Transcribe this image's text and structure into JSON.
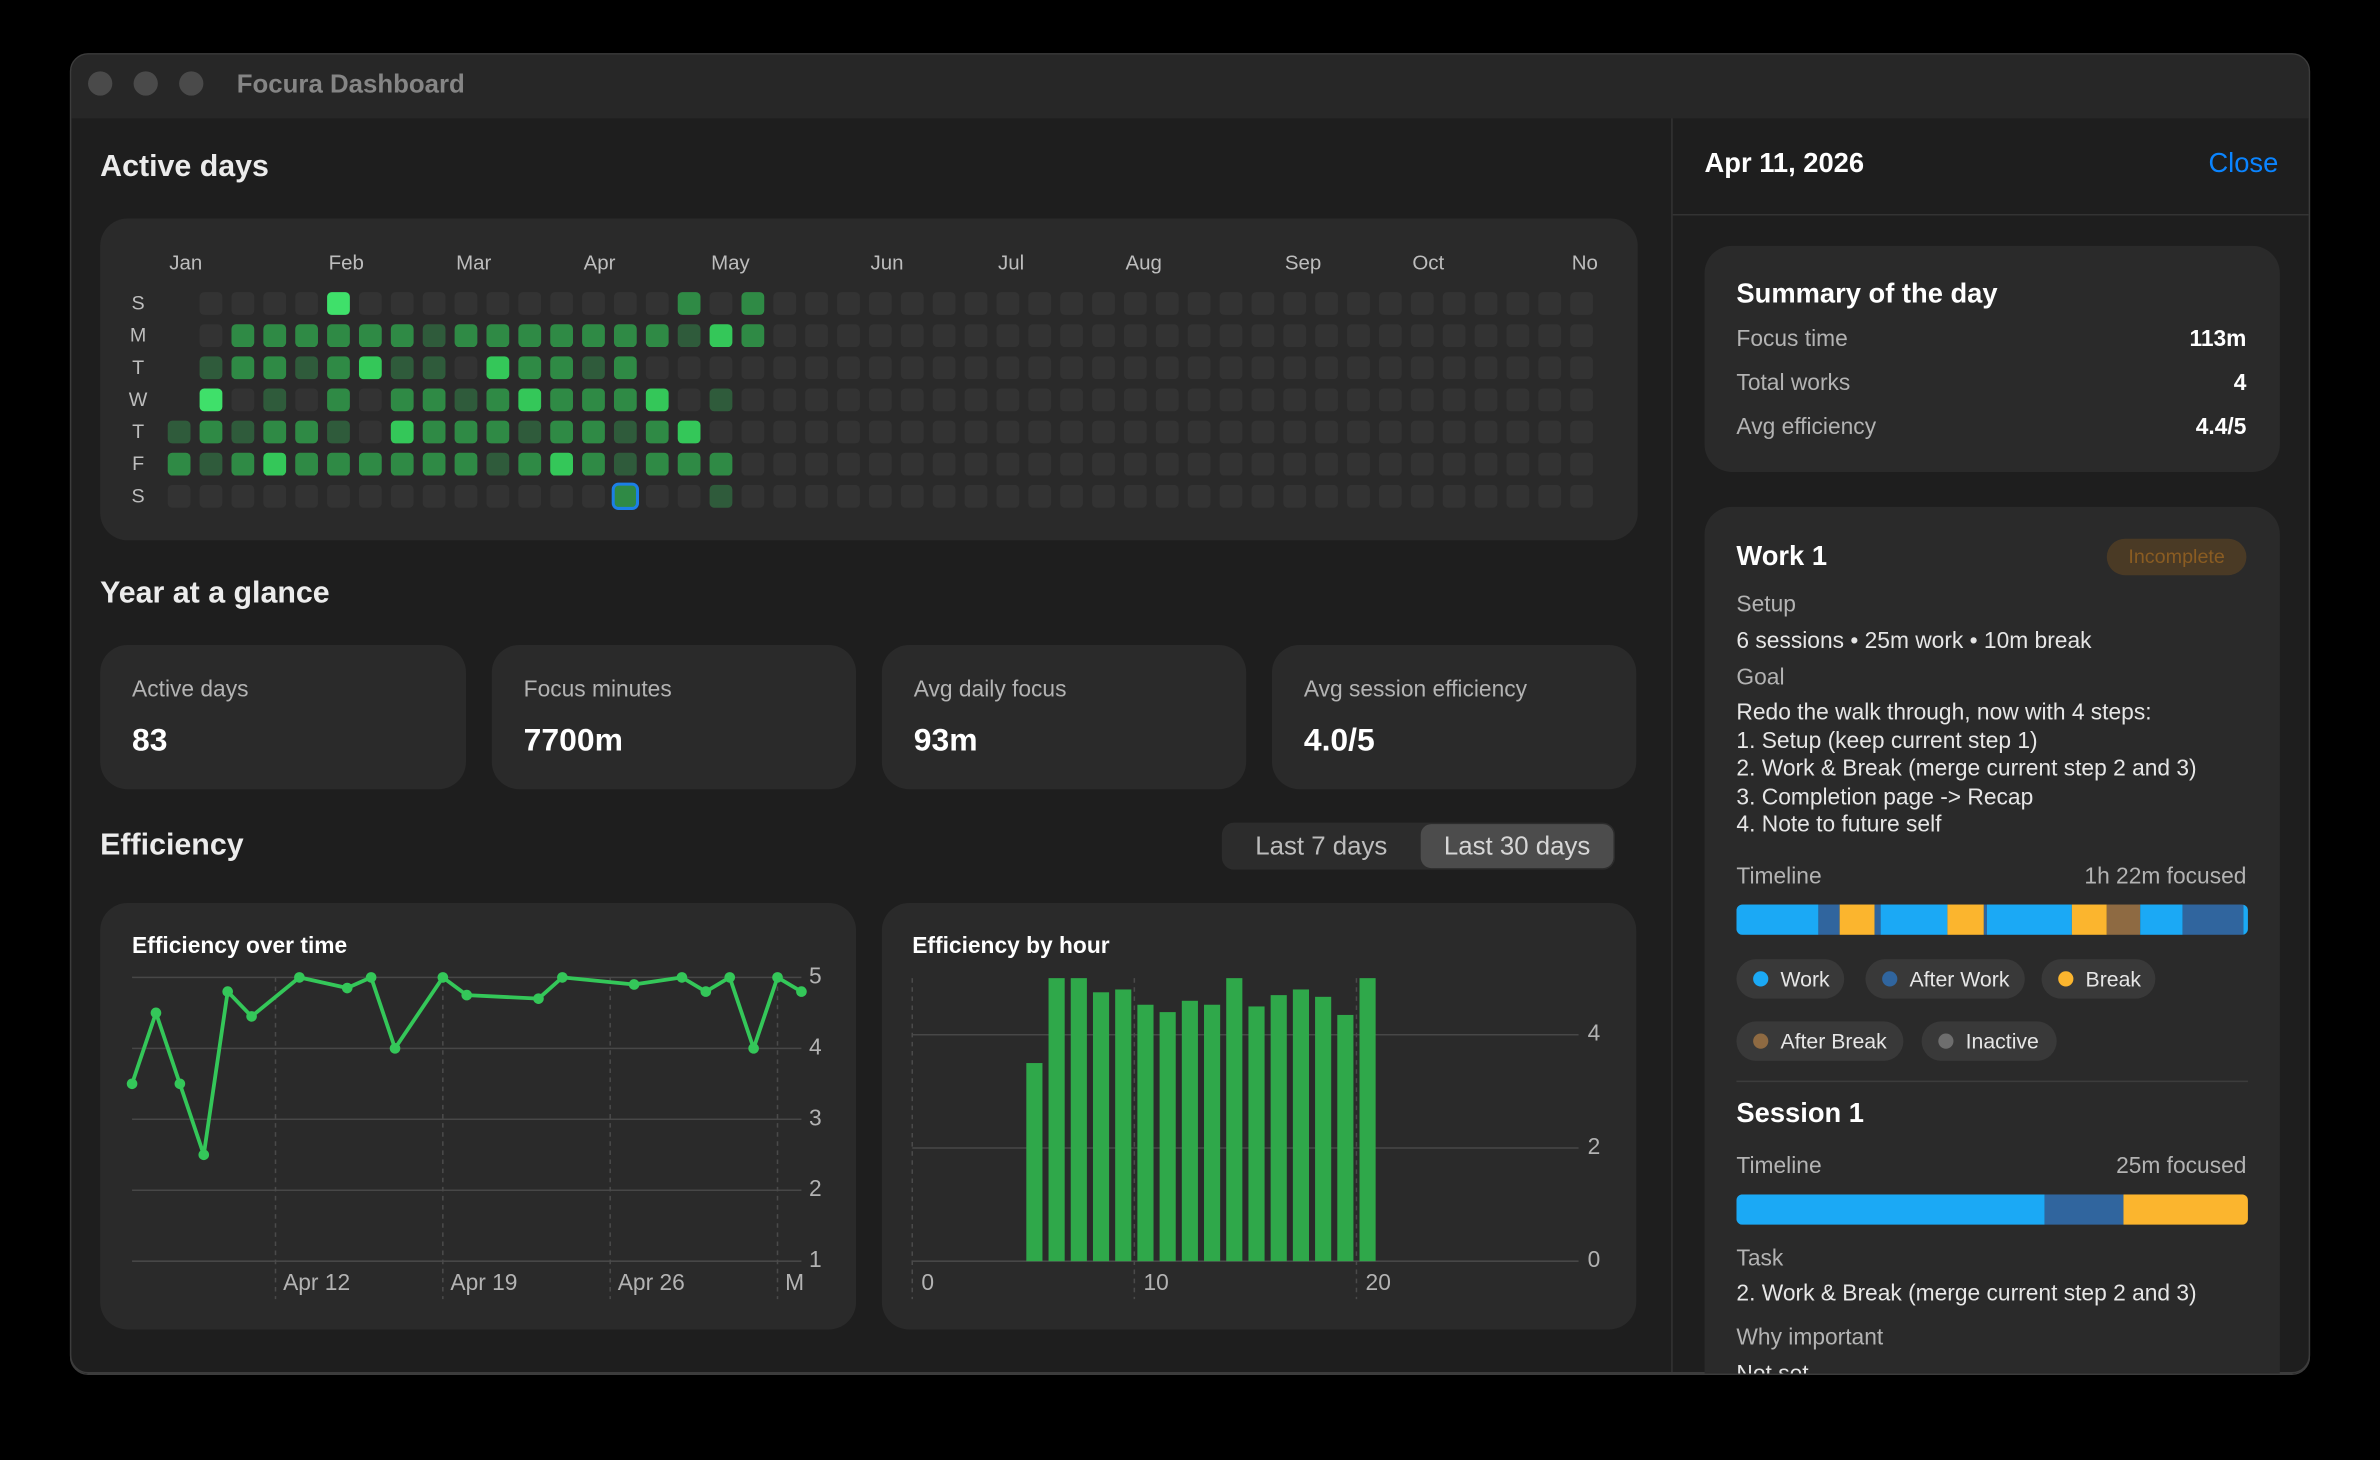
{
  "window": {
    "title": "Focura Dashboard"
  },
  "year_at_a_glance": {
    "title": "Year at a glance",
    "cards": [
      {
        "label": "Active days",
        "value": "83"
      },
      {
        "label": "Focus minutes",
        "value": "7700m"
      },
      {
        "label": "Avg daily focus",
        "value": "93m"
      },
      {
        "label": "Avg session efficiency",
        "value": "4.0/5"
      }
    ]
  },
  "efficiency": {
    "title": "Efficiency",
    "range_options": [
      "Last 7 days",
      "Last 30 days"
    ]
  },
  "chart_data": [
    {
      "type": "heatmap",
      "title": "Active days",
      "months": [
        "Jan",
        "Feb",
        "Mar",
        "Apr",
        "May",
        "Jun",
        "Jul",
        "Aug",
        "Sep",
        "Oct",
        "No"
      ],
      "days": [
        "S",
        "M",
        "T",
        "W",
        "T",
        "F",
        "S"
      ],
      "colors": [
        "#333333",
        "#2f5b3b",
        "#2f8a45",
        "#34c759",
        "#3fe06a"
      ],
      "values": [
        [
          null,
          0,
          0,
          0,
          0,
          4,
          0,
          0,
          0,
          0,
          0,
          0,
          0,
          0,
          0,
          0,
          2,
          0,
          2,
          0,
          0,
          0,
          0,
          0,
          0,
          0,
          0,
          0,
          0,
          0,
          0,
          0,
          0,
          0,
          0,
          0,
          0,
          0,
          0,
          0,
          0,
          0,
          0,
          0,
          0
        ],
        [
          null,
          0,
          2,
          2,
          2,
          2,
          2,
          2,
          1,
          2,
          2,
          2,
          2,
          2,
          2,
          2,
          1,
          3,
          2,
          0,
          0,
          0,
          0,
          0,
          0,
          0,
          0,
          0,
          0,
          0,
          0,
          0,
          0,
          0,
          0,
          0,
          0,
          0,
          0,
          0,
          0,
          0,
          0,
          0,
          0
        ],
        [
          null,
          1,
          2,
          2,
          1,
          2,
          3,
          1,
          1,
          0,
          3,
          2,
          2,
          1,
          2,
          0,
          0,
          0,
          0,
          0,
          0,
          0,
          0,
          0,
          0,
          0,
          0,
          0,
          0,
          0,
          0,
          0,
          0,
          0,
          0,
          0,
          0,
          0,
          0,
          0,
          0,
          0,
          0,
          0,
          0
        ],
        [
          null,
          4,
          0,
          1,
          0,
          2,
          0,
          2,
          2,
          1,
          2,
          3,
          2,
          2,
          2,
          3,
          0,
          1,
          0,
          0,
          0,
          0,
          0,
          0,
          0,
          0,
          0,
          0,
          0,
          0,
          0,
          0,
          0,
          0,
          0,
          0,
          0,
          0,
          0,
          0,
          0,
          0,
          0,
          0,
          0
        ],
        [
          1,
          2,
          1,
          2,
          2,
          1,
          0,
          3,
          2,
          2,
          2,
          1,
          2,
          2,
          1,
          2,
          3,
          0,
          0,
          0,
          0,
          0,
          0,
          0,
          0,
          0,
          0,
          0,
          0,
          0,
          0,
          0,
          0,
          0,
          0,
          0,
          0,
          0,
          0,
          0,
          0,
          0,
          0,
          0,
          0
        ],
        [
          2,
          1,
          2,
          3,
          2,
          2,
          2,
          2,
          2,
          2,
          1,
          2,
          3,
          2,
          1,
          2,
          2,
          2,
          0,
          0,
          0,
          0,
          0,
          0,
          0,
          0,
          0,
          0,
          0,
          0,
          0,
          0,
          0,
          0,
          0,
          0,
          0,
          0,
          0,
          0,
          0,
          0,
          0,
          0,
          0
        ],
        [
          0,
          0,
          0,
          0,
          0,
          0,
          0,
          0,
          0,
          0,
          0,
          0,
          0,
          0,
          2,
          0,
          0,
          1,
          0,
          0,
          0,
          0,
          0,
          0,
          0,
          0,
          0,
          0,
          0,
          0,
          0,
          0,
          0,
          0,
          0,
          0,
          0,
          0,
          0,
          0,
          0,
          0,
          0,
          0,
          0
        ]
      ]
    },
    {
      "type": "line",
      "title": "Efficiency over time",
      "color": "#34c759",
      "x": [
        "Apr 6",
        "Apr 7",
        "Apr 8",
        "Apr 9",
        "Apr 10",
        "Apr 11",
        "Apr 13",
        "Apr 15",
        "Apr 16",
        "Apr 17",
        "Apr 19",
        "Apr 20",
        "Apr 23",
        "Apr 24",
        "Apr 27",
        "Apr 29",
        "Apr 30",
        "May 1",
        "May 2",
        "May 3",
        "May 4"
      ],
      "values": [
        3.5,
        4.5,
        3.5,
        2.5,
        4.8,
        4.45,
        5,
        4.85,
        5,
        4,
        5,
        4.75,
        4.7,
        5,
        4.9,
        5,
        4.8,
        5,
        4,
        5,
        4.8
      ],
      "xlim": [
        "Apr 6",
        "May 4"
      ],
      "xticks": [
        "Apr 12",
        "Apr 19",
        "Apr 26",
        {
          "value": "May 3",
          "label": "M"
        }
      ],
      "ylim": [
        1,
        5
      ],
      "yticks": [
        1,
        2,
        3,
        4,
        5
      ],
      "grid": true
    },
    {
      "type": "bar",
      "title": "Efficiency by hour",
      "color": "#2fa84a",
      "x": [
        5,
        6,
        7,
        8,
        9,
        10,
        11,
        12,
        13,
        14,
        15,
        16,
        17,
        18,
        19,
        20
      ],
      "values": [
        3.5,
        5,
        5,
        4.75,
        4.8,
        4.53,
        4.4,
        4.6,
        4.53,
        5,
        4.5,
        4.7,
        4.8,
        4.67,
        4.35,
        5
      ],
      "xlim": [
        0,
        30
      ],
      "xticks": [
        0,
        10,
        20
      ],
      "ylim": [
        0,
        5
      ],
      "yticks": [
        0,
        2,
        4
      ],
      "grid": true
    }
  ],
  "detail": {
    "date": "Apr 11, 2026",
    "close": "Close",
    "summary": {
      "title": "Summary of the day",
      "rows": [
        [
          "Focus time",
          "113m"
        ],
        [
          "Total works",
          "4"
        ],
        [
          "Avg efficiency",
          "4.4/5"
        ]
      ]
    },
    "work": {
      "title": "Work 1",
      "status": "Incomplete",
      "setup_label": "Setup",
      "setup": "6 sessions • 25m work • 10m break",
      "goal_label": "Goal",
      "goal": [
        "Redo the walk through, now with 4 steps:",
        "1. Setup (keep current step 1)",
        "2. Work & Break (merge current step 2 and 3)",
        "3. Completion page -> Recap",
        "4. Note to future self"
      ],
      "timeline_label": "Timeline",
      "timeline_total": "1h 22m focused",
      "legend": [
        {
          "name": "Work",
          "color": "#1ba9f5"
        },
        {
          "name": "After Work",
          "color": "#30659e"
        },
        {
          "name": "Break",
          "color": "#fbb52e"
        },
        {
          "name": "After Break",
          "color": "#8e6a42"
        },
        {
          "name": "Inactive",
          "color": "#6e6e6e"
        }
      ]
    },
    "session": {
      "title": "Session 1",
      "timeline_label": "Timeline",
      "timeline_total": "25m focused",
      "task_label": "Task",
      "task": "2. Work & Break (merge current step 2 and 3)",
      "why_label": "Why important",
      "why": "Not set"
    }
  }
}
